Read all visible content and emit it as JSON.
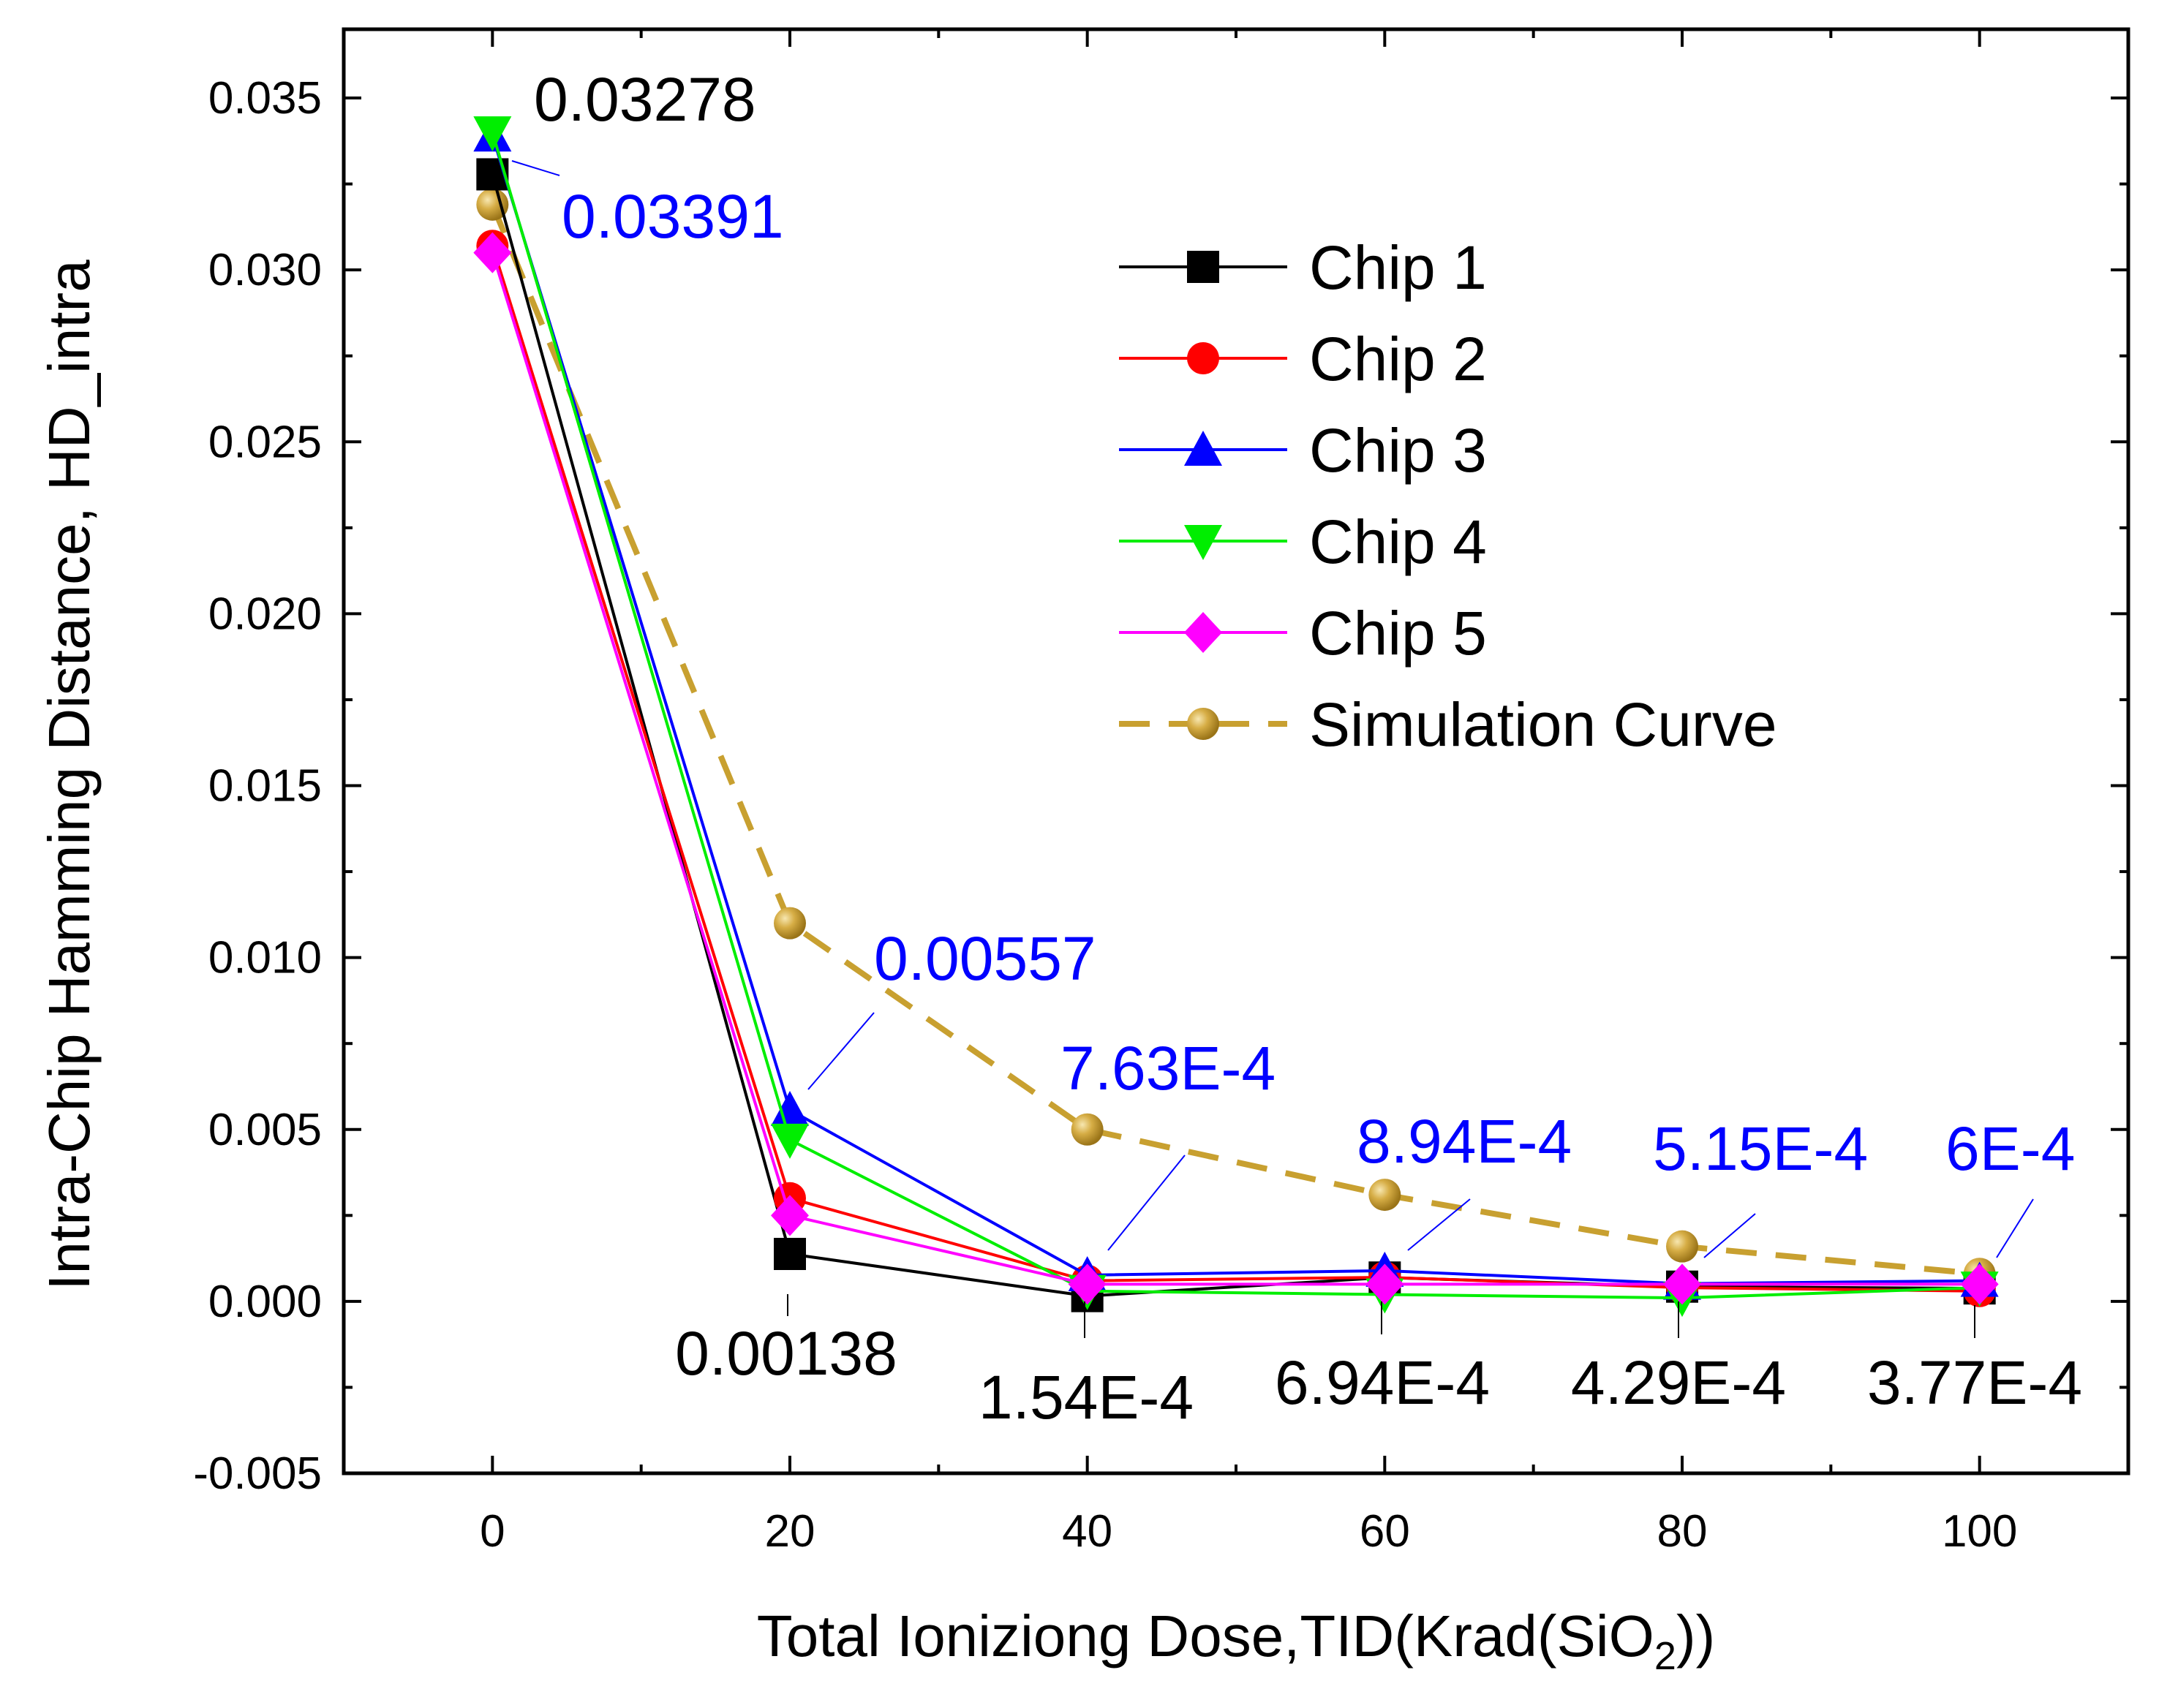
{
  "chart_data": {
    "type": "line",
    "xlabel_main": "Total Ioniziong Dose,TID(Krad(SiO",
    "xlabel_sub": "2",
    "xlabel_tail": "))",
    "ylabel": "Intra-Chip Hamming Distance, HD_intra",
    "xlim": [
      -10,
      110
    ],
    "ylim": [
      -0.005,
      0.037
    ],
    "x_ticks": [
      0,
      20,
      40,
      60,
      80,
      100
    ],
    "x_tick_labels": [
      "0",
      "20",
      "40",
      "60",
      "80",
      "100"
    ],
    "y_ticks": [
      -0.005,
      0,
      0.005,
      0.01,
      0.015,
      0.02,
      0.025,
      0.03,
      0.035
    ],
    "y_tick_labels": [
      "-0.005",
      "0.000",
      "0.005",
      "0.010",
      "0.015",
      "0.020",
      "0.025",
      "0.030",
      "0.035"
    ],
    "x": [
      0,
      20,
      40,
      60,
      80,
      100
    ],
    "legend_position": "top-right",
    "series": [
      {
        "name": "Chip 1",
        "color": "#000000",
        "marker": "square",
        "values": [
          0.03278,
          0.00138,
          0.000154,
          0.000694,
          0.000429,
          0.000377
        ]
      },
      {
        "name": "Chip 2",
        "color": "#ff0000",
        "marker": "circle",
        "values": [
          0.0307,
          0.003,
          0.0006,
          0.0007,
          0.0004,
          0.0003
        ]
      },
      {
        "name": "Chip 3",
        "color": "#0000ff",
        "marker": "triangle-up",
        "values": [
          0.03391,
          0.00557,
          0.000763,
          0.000894,
          0.000515,
          0.0006
        ]
      },
      {
        "name": "Chip 4",
        "color": "#00ee00",
        "marker": "triangle-down",
        "values": [
          0.034,
          0.0047,
          0.0003,
          0.0002,
          0.0001,
          0.0004
        ]
      },
      {
        "name": "Chip 5",
        "color": "#ff00ff",
        "marker": "diamond",
        "values": [
          0.0305,
          0.0025,
          0.0005,
          0.0005,
          0.0005,
          0.0005
        ]
      },
      {
        "name": "Simulation Curve",
        "color": "#c8a030",
        "marker": "ball",
        "dashed": true,
        "values": [
          0.0319,
          0.011,
          0.005,
          0.0031,
          0.0016,
          0.0008
        ]
      }
    ],
    "annotations": [
      {
        "text": "0.03278",
        "color": "#000000",
        "x": 0,
        "y": 0.03278
      },
      {
        "text": "0.03391",
        "color": "#0000ff",
        "x": 0,
        "y": 0.03391
      },
      {
        "text": "0.00557",
        "color": "#0000ff",
        "x": 20,
        "y": 0.00557
      },
      {
        "text": "0.00138",
        "color": "#000000",
        "x": 20,
        "y": 0.00138
      },
      {
        "text": "7.63E-4",
        "color": "#0000ff",
        "x": 40,
        "y": 0.000763
      },
      {
        "text": "1.54E-4",
        "color": "#000000",
        "x": 40,
        "y": 0.000154
      },
      {
        "text": "8.94E-4",
        "color": "#0000ff",
        "x": 60,
        "y": 0.000894
      },
      {
        "text": "6.94E-4",
        "color": "#000000",
        "x": 60,
        "y": 0.000694
      },
      {
        "text": "5.15E-4",
        "color": "#0000ff",
        "x": 80,
        "y": 0.000515
      },
      {
        "text": "4.29E-4",
        "color": "#000000",
        "x": 80,
        "y": 0.000429
      },
      {
        "text": "6E-4",
        "color": "#0000ff",
        "x": 100,
        "y": 0.0006
      },
      {
        "text": "3.77E-4",
        "color": "#000000",
        "x": 100,
        "y": 0.000377
      }
    ]
  }
}
